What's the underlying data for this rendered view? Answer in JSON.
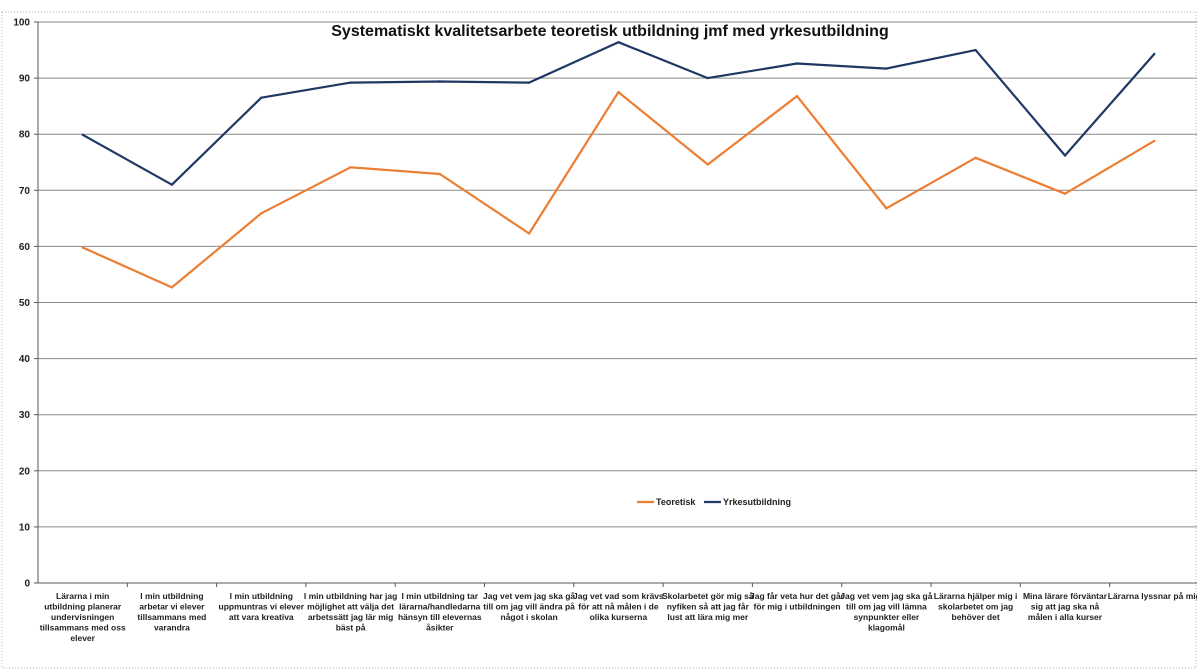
{
  "chart_data": {
    "type": "line",
    "title": "Systematiskt kvalitetsarbete teoretisk utbildning jmf med yrkesutbildning",
    "ylim": [
      0,
      100
    ],
    "yticks": [
      0,
      10,
      20,
      30,
      40,
      50,
      60,
      70,
      80,
      90,
      100
    ],
    "grid": true,
    "legend_position": "center",
    "categories": [
      [
        "Lärarna i min",
        "utbildning planerar",
        "undervisningen",
        "tillsammans med oss",
        "elever"
      ],
      [
        "I min utbildning",
        "arbetar vi elever",
        "tillsammans med",
        "varandra"
      ],
      [
        "I min utbildning",
        "uppmuntras vi elever",
        "att vara kreativa"
      ],
      [
        "I min utbildning har jag",
        "möjlighet att välja det",
        "arbetssätt jag lär mig",
        "bäst på"
      ],
      [
        "I min utbildning tar",
        "lärarna/handledarna",
        "hänsyn till elevernas",
        "åsikter"
      ],
      [
        "Jag vet vem jag ska gå",
        "till om jag vill ändra på",
        "något i skolan"
      ],
      [
        "Jag vet vad som krävs",
        "för att nå målen i de",
        "olika kurserna"
      ],
      [
        "Skolarbetet gör mig så",
        "nyfiken så att jag får",
        "lust att lära mig mer"
      ],
      [
        "Jag får veta hur det går",
        "för mig i utbildningen"
      ],
      [
        "Jag vet vem jag ska gå",
        "till om jag vill lämna",
        "synpunkter eller",
        "klagomål"
      ],
      [
        "Lärarna hjälper mig i",
        "skolarbetet om jag",
        "behöver det"
      ],
      [
        "Mina lärare förväntar",
        "sig att jag ska nå",
        "målen i alla kurser"
      ],
      [
        "Lärarna lyssnar på mig"
      ]
    ],
    "series": [
      {
        "name": "Teoretisk",
        "color": "#ED7D31",
        "values": [
          59.8,
          52.7,
          65.9,
          74.1,
          72.9,
          62.3,
          87.5,
          74.6,
          86.8,
          66.8,
          75.8,
          69.4,
          78.8
        ]
      },
      {
        "name": "Yrkesutbildning",
        "color": "#1F3864",
        "values": [
          79.9,
          71.0,
          86.5,
          89.2,
          89.4,
          89.2,
          96.4,
          90.0,
          92.6,
          91.7,
          95.0,
          76.2,
          94.3
        ]
      }
    ]
  }
}
